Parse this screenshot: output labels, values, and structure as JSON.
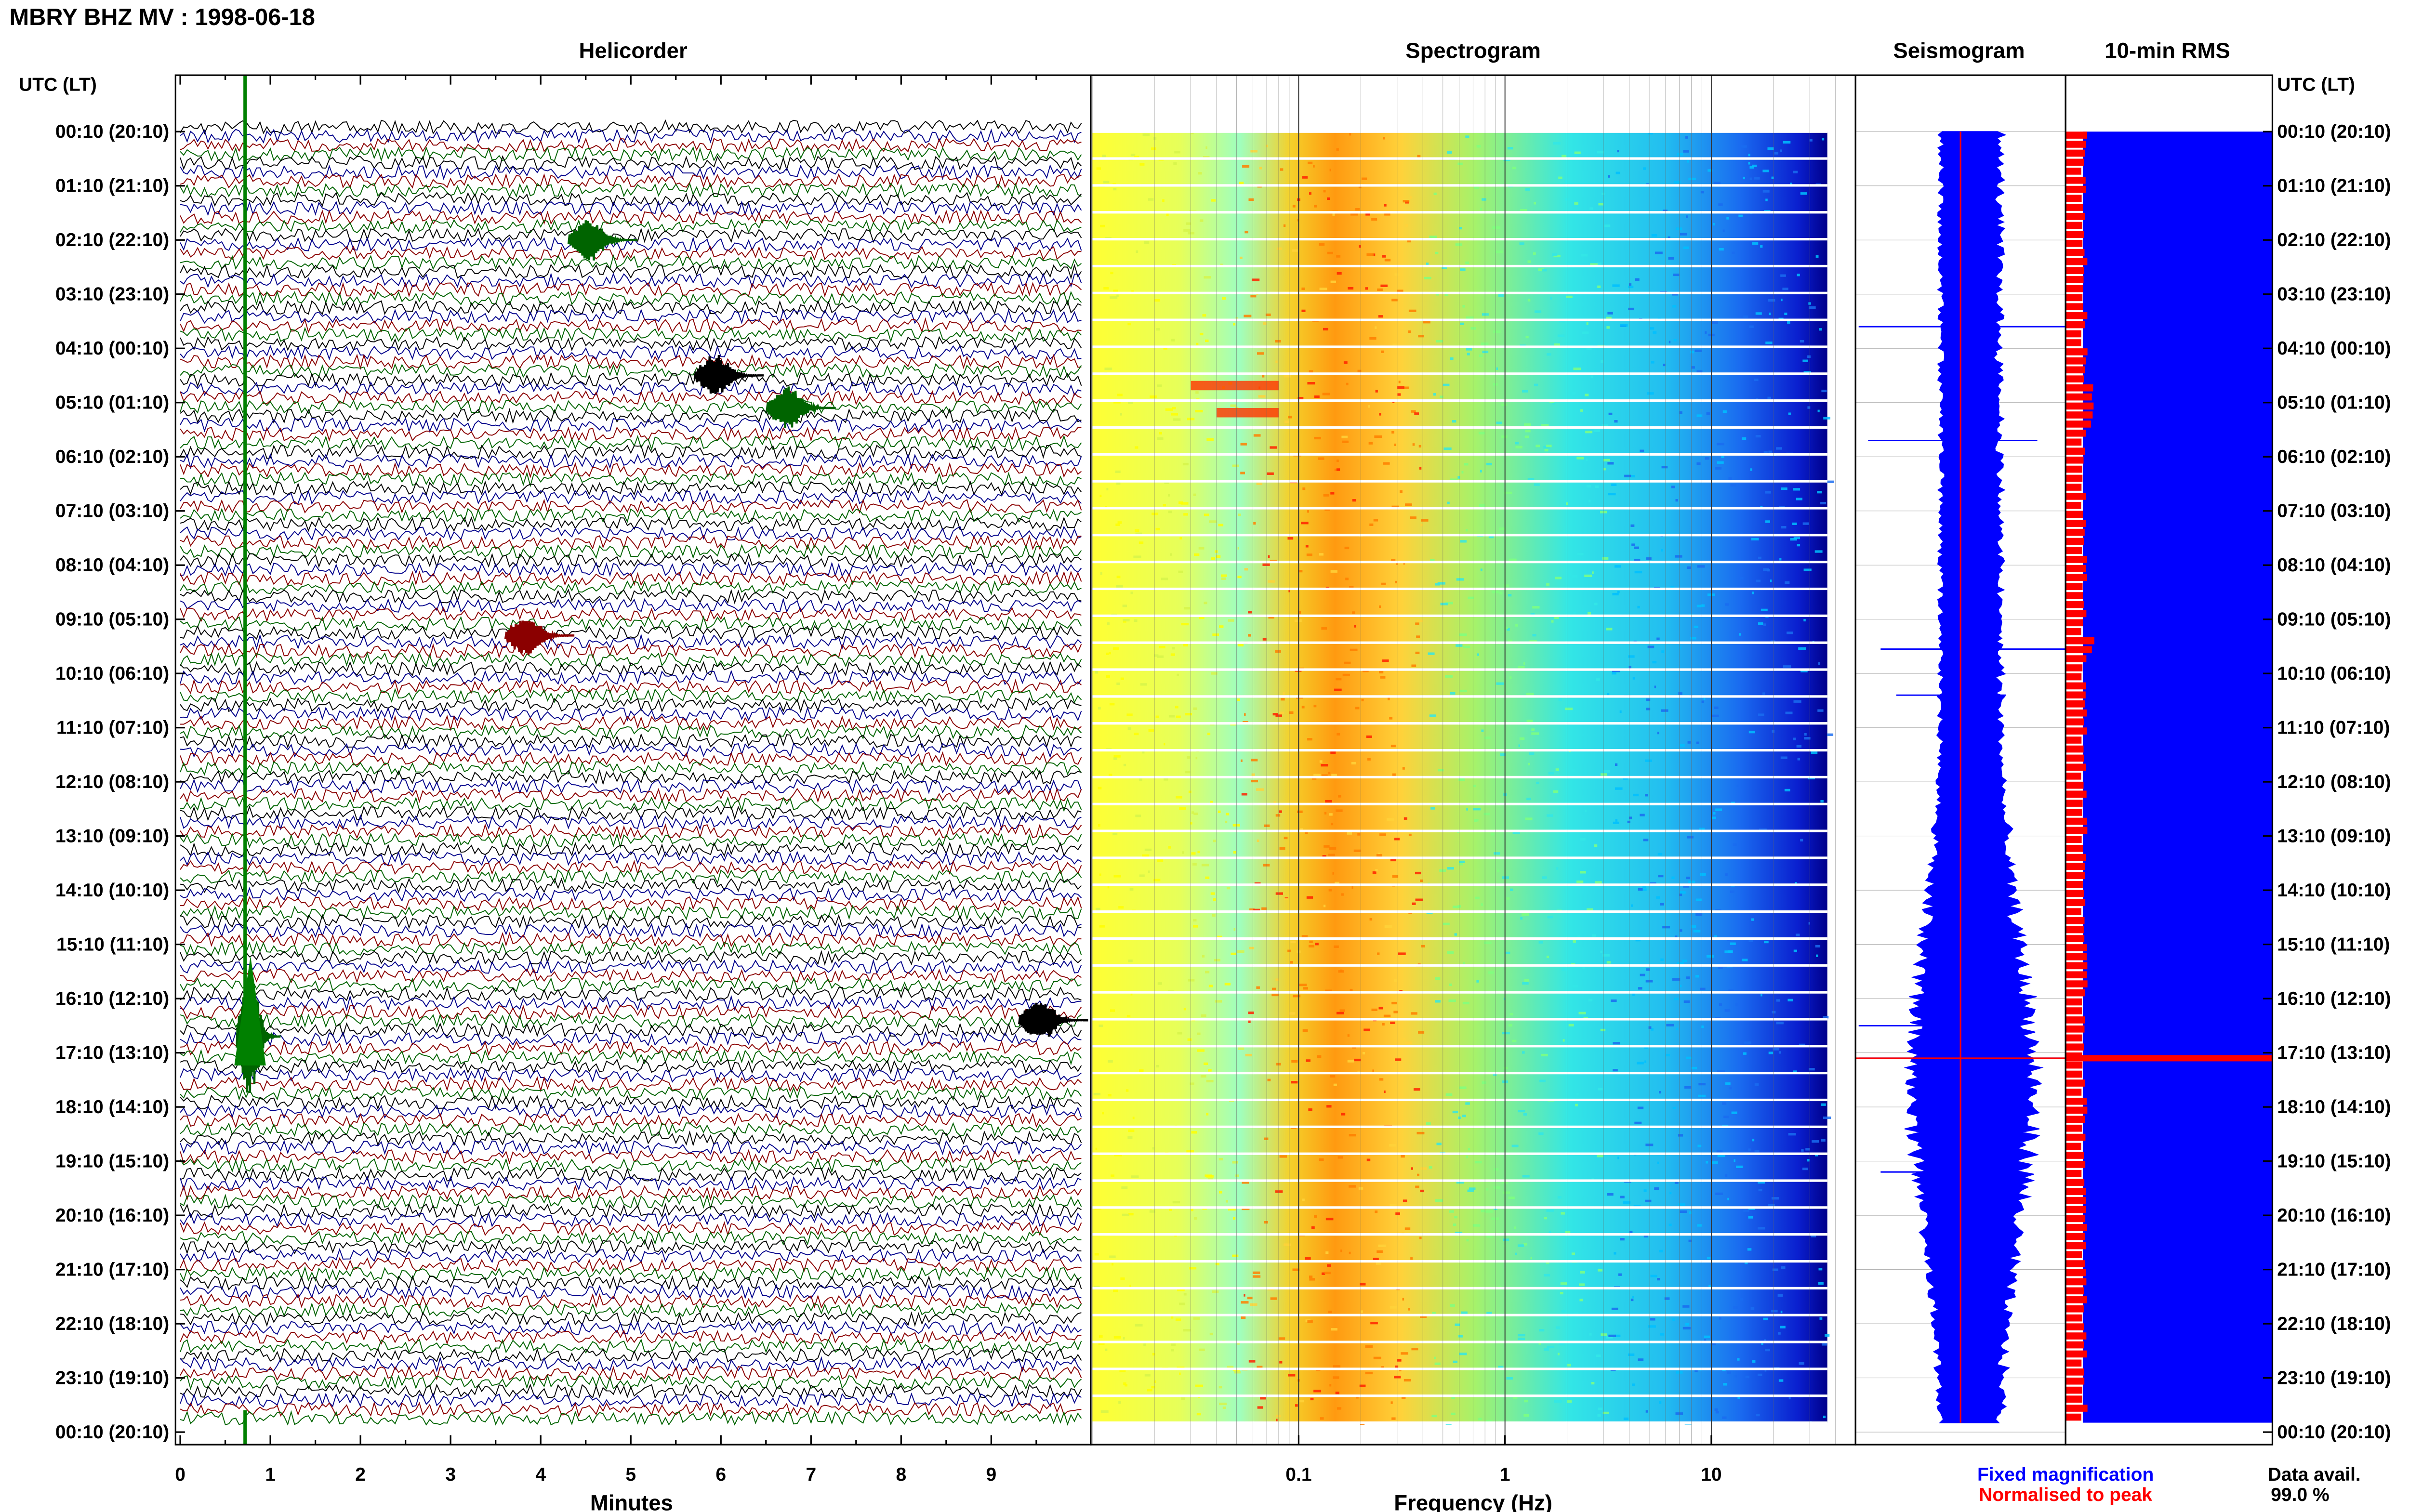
{
  "header": {
    "title": "MBRY BHZ MV : 1998-06-18",
    "utc_label_left": "UTC (LT)",
    "utc_label_right": "UTC (LT)"
  },
  "panels": {
    "helicorder_title": "Helicorder",
    "spectrogram_title": "Spectrogram",
    "seismogram_title": "Seismogram",
    "rms_title": "10-min RMS"
  },
  "axes": {
    "helicorder_xlabel": "Minutes",
    "spectrogram_xlabel": "Frequency (Hz)"
  },
  "legend": {
    "fixed": "Fixed magnification",
    "normalised": "Normalised to peak",
    "fixed_color": "#0000ff",
    "normalised_color": "#ff0000"
  },
  "data_avail": {
    "label": "Data avail.",
    "value": "99.0 %"
  },
  "chart_data": [
    {
      "type": "line",
      "title": "Helicorder",
      "xlabel": "Minutes",
      "xlim": [
        0,
        10
      ],
      "x_ticks": [
        "0",
        "1",
        "2",
        "3",
        "4",
        "5",
        "6",
        "7",
        "8",
        "9"
      ],
      "row_interval_minutes": 10,
      "row_colors": [
        "#000000",
        "#00008b",
        "#8b0000",
        "#006400"
      ],
      "y_tick_labels": [
        "00:10 (20:10)",
        "01:10 (21:10)",
        "02:10 (22:10)",
        "03:10 (23:10)",
        "04:10 (00:10)",
        "05:10 (01:10)",
        "06:10 (02:10)",
        "07:10 (03:10)",
        "08:10 (04:10)",
        "09:10 (05:10)",
        "10:10 (06:10)",
        "11:10 (07:10)",
        "12:10 (08:10)",
        "13:10 (09:10)",
        "14:10 (10:10)",
        "15:10 (11:10)",
        "16:10 (12:10)",
        "17:10 (13:10)",
        "18:10 (14:10)",
        "19:10 (15:10)",
        "20:10 (16:10)",
        "21:10 (17:10)",
        "22:10 (18:10)",
        "23:10 (19:10)",
        "00:10 (20:10)"
      ],
      "events": [
        {
          "row_hour": 2.0,
          "minute": 4.5,
          "color": "#006400"
        },
        {
          "row_hour": 4.5,
          "minute": 5.9,
          "color": "#000000"
        },
        {
          "row_hour": 5.1,
          "minute": 6.7,
          "color": "#006400"
        },
        {
          "row_hour": 9.3,
          "minute": 3.8,
          "color": "#8b0000"
        },
        {
          "row_hour": 16.4,
          "minute": 9.5,
          "color": "#000000"
        },
        {
          "row_hour": 16.7,
          "minute": 0.75,
          "color": "#006400"
        }
      ]
    },
    {
      "type": "heatmap",
      "title": "Spectrogram",
      "xlabel": "Frequency (Hz)",
      "x_scale": "log",
      "xlim": [
        0.01,
        50
      ],
      "x_ticks": [
        "0.1",
        "1",
        "10"
      ],
      "colormap": [
        "#ffffff",
        "#00008b",
        "#0000ff",
        "#00bfff",
        "#00ffff",
        "#7fff7f",
        "#ffff00",
        "#ff7f00",
        "#ff0000"
      ],
      "peak_band_hz": [
        0.25,
        0.6
      ]
    },
    {
      "type": "line",
      "title": "Seismogram",
      "series": [
        {
          "name": "Fixed magnification",
          "color": "#0000ff"
        },
        {
          "name": "Normalised to peak",
          "color": "#ff0000"
        }
      ],
      "peak_hour": 17.1
    },
    {
      "type": "bar",
      "title": "10-min RMS",
      "series": [
        {
          "name": "Fixed magnification",
          "color": "#0000ff",
          "level": 1.0
        },
        {
          "name": "Normalised to peak",
          "color": "#ff0000",
          "level": 0.1
        }
      ],
      "peak_hour": 17.1
    }
  ]
}
